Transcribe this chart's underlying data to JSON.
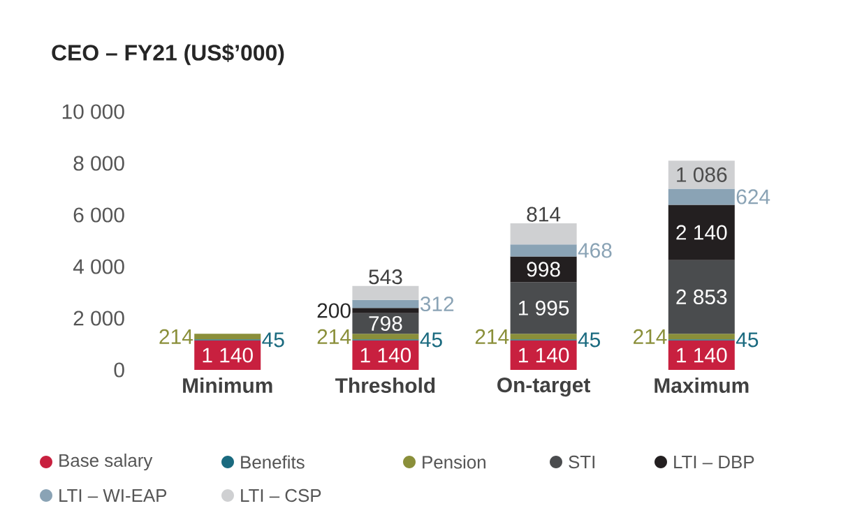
{
  "chart_data": {
    "type": "bar",
    "title": "CEO – FY21 (US$’000)",
    "stacked": true,
    "legend": "bottom",
    "grid": false,
    "data_labels": true,
    "categories": [
      "Minimum",
      "Threshold",
      "On-target",
      "Maximum"
    ],
    "ylim": [
      0,
      10000
    ],
    "yticks": [
      0,
      {
        "value": 2000,
        "label": "2 000"
      },
      {
        "value": 4000,
        "label": "4 000"
      },
      {
        "value": 6000,
        "label": "6 000"
      },
      {
        "value": 8000,
        "label": "8 000"
      },
      {
        "value": 10000,
        "label": "10 000"
      }
    ],
    "series": [
      {
        "name": "Base salary",
        "color": "#c8203f",
        "values": [
          1140,
          1140,
          1140,
          1140
        ],
        "value_labels": [
          "1 140",
          "1 140",
          "1 140",
          "1 140"
        ]
      },
      {
        "name": "Benefits",
        "color": "#1a6a7f",
        "values": [
          45,
          45,
          45,
          45
        ],
        "value_labels": [
          "45",
          "45",
          "45",
          "45"
        ]
      },
      {
        "name": "Pension",
        "color": "#8a8f3a",
        "values": [
          214,
          214,
          214,
          214
        ],
        "value_labels": [
          "214",
          "214",
          "214",
          "214"
        ]
      },
      {
        "name": "STI",
        "color": "#4a4c4e",
        "values": [
          null,
          798,
          1995,
          2853
        ],
        "value_labels": [
          null,
          "798",
          "1 995",
          "2 853"
        ]
      },
      {
        "name": "LTI – DBP",
        "color": "#231f20",
        "values": [
          null,
          200,
          998,
          2140
        ],
        "value_labels": [
          null,
          "200",
          "998",
          "2 140"
        ]
      },
      {
        "name": "LTI – WI-EAP",
        "color": "#8aa3b5",
        "values": [
          null,
          312,
          468,
          624
        ],
        "value_labels": [
          null,
          "312",
          "468",
          "624"
        ]
      },
      {
        "name": "LTI – CSP",
        "color": "#cfd0d2",
        "values": [
          null,
          543,
          814,
          1086
        ],
        "value_labels": [
          null,
          "543",
          "814",
          "1 086"
        ]
      }
    ]
  }
}
